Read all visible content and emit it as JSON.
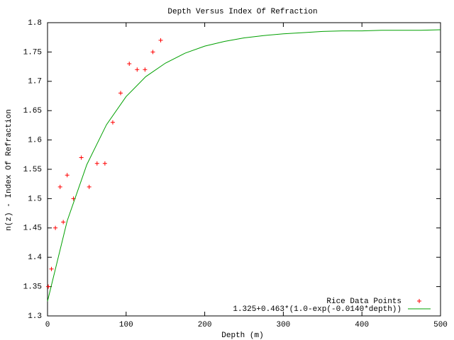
{
  "chart_data": {
    "type": "scatter",
    "title": "Depth Versus Index Of Refraction",
    "x_label": "Depth (m)",
    "y_label": "n(z) - Index Of Refraction",
    "xlim": [
      0,
      500
    ],
    "ylim": [
      1.3,
      1.8
    ],
    "xticks": [
      0,
      100,
      200,
      300,
      400,
      500
    ],
    "yticks": [
      1.3,
      1.35,
      1.4,
      1.45,
      1.5,
      1.55,
      1.6,
      1.65,
      1.7,
      1.75,
      1.8
    ],
    "grid": false,
    "legend": "bottom right",
    "series": [
      {
        "name": "Rice Data Points",
        "color": "#ff0000",
        "mode": "points",
        "x": [
          1,
          5,
          10,
          16,
          20,
          25,
          33,
          43,
          53,
          63,
          73,
          83,
          93,
          104,
          114,
          124,
          134,
          144
        ],
        "values": [
          1.35,
          1.38,
          1.45,
          1.52,
          1.46,
          1.54,
          1.5,
          1.57,
          1.52,
          1.56,
          1.56,
          1.63,
          1.68,
          1.73,
          1.72,
          1.72,
          1.75,
          1.77
        ]
      },
      {
        "name": "1.325+0.463*(1.0-exp(-0.0140*depth))",
        "color": "#00a000",
        "mode": "line",
        "x": [
          0,
          25,
          50,
          75,
          100,
          125,
          150,
          175,
          200,
          225,
          250,
          275,
          300,
          325,
          350,
          375,
          400,
          425,
          450,
          475,
          500
        ],
        "values": [
          1.325,
          1.462,
          1.558,
          1.626,
          1.674,
          1.708,
          1.731,
          1.748,
          1.76,
          1.768,
          1.774,
          1.778,
          1.781,
          1.783,
          1.785,
          1.786,
          1.786,
          1.787,
          1.787,
          1.787,
          1.788
        ]
      }
    ]
  }
}
